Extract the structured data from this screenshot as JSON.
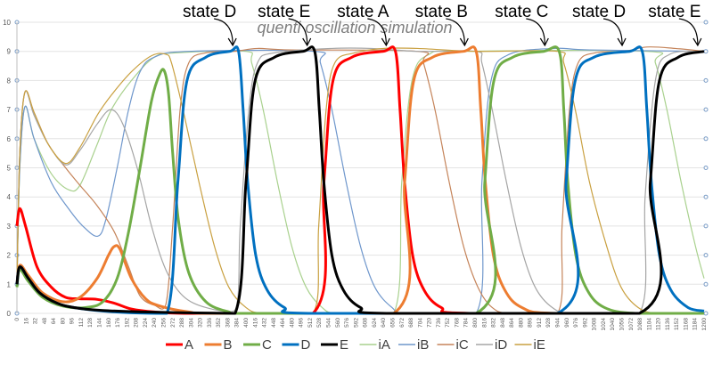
{
  "chart_data": {
    "type": "line",
    "title": "quenti oscillation simulation",
    "xlabel": "",
    "ylabel": "",
    "xlim": [
      0,
      1200
    ],
    "ylim": [
      0,
      10
    ],
    "y_ticks": [
      0,
      1,
      2,
      3,
      4,
      5,
      6,
      7,
      8,
      9,
      10
    ],
    "x_tick_step": 16,
    "grid": true,
    "legend_position": "bottom",
    "annotations": [
      {
        "text": "state D",
        "x": 380
      },
      {
        "text": "state E",
        "x": 510
      },
      {
        "text": "state A",
        "x": 648
      },
      {
        "text": "state B",
        "x": 785
      },
      {
        "text": "state C",
        "x": 925
      },
      {
        "text": "state D",
        "x": 1060
      },
      {
        "text": "state E",
        "x": 1192
      }
    ],
    "series": [
      {
        "name": "A",
        "color": "#ff0000",
        "width": 3,
        "points": [
          [
            0,
            3.0
          ],
          [
            5,
            3.6
          ],
          [
            15,
            3.0
          ],
          [
            35,
            1.6
          ],
          [
            60,
            0.9
          ],
          [
            85,
            0.55
          ],
          [
            110,
            0.5
          ],
          [
            140,
            0.48
          ],
          [
            170,
            0.35
          ],
          [
            200,
            0.15
          ],
          [
            240,
            0.05
          ],
          [
            300,
            0
          ],
          [
            517,
            0
          ],
          [
            536,
            4.5
          ],
          [
            552,
            8
          ],
          [
            585,
            8.8
          ],
          [
            640,
            9
          ],
          [
            661,
            9
          ],
          [
            669,
            7
          ],
          [
            677,
            4.5
          ],
          [
            691,
            2
          ],
          [
            711,
            0.8
          ],
          [
            741,
            0.2
          ],
          [
            790,
            0
          ],
          [
            1200,
            0
          ]
        ]
      },
      {
        "name": "B",
        "color": "#ed7d31",
        "width": 3,
        "points": [
          [
            0,
            1.0
          ],
          [
            5,
            1.65
          ],
          [
            20,
            1.3
          ],
          [
            45,
            0.7
          ],
          [
            80,
            0.4
          ],
          [
            110,
            0.55
          ],
          [
            140,
            1.2
          ],
          [
            160,
            2.0
          ],
          [
            170,
            2.3
          ],
          [
            180,
            2.2
          ],
          [
            200,
            1.2
          ],
          [
            225,
            0.5
          ],
          [
            250,
            0.25
          ],
          [
            300,
            0.05
          ],
          [
            350,
            0
          ],
          [
            658,
            0
          ],
          [
            677,
            4.5
          ],
          [
            693,
            8
          ],
          [
            726,
            8.8
          ],
          [
            780,
            9
          ],
          [
            802,
            9
          ],
          [
            810,
            7
          ],
          [
            818,
            4.5
          ],
          [
            832,
            2
          ],
          [
            852,
            0.8
          ],
          [
            882,
            0.2
          ],
          [
            940,
            0
          ],
          [
            1200,
            0
          ]
        ]
      },
      {
        "name": "C",
        "color": "#70ad47",
        "width": 3,
        "points": [
          [
            0,
            0.9
          ],
          [
            5,
            1.5
          ],
          [
            20,
            1.1
          ],
          [
            45,
            0.55
          ],
          [
            80,
            0.25
          ],
          [
            120,
            0.2
          ],
          [
            150,
            0.4
          ],
          [
            175,
            1.2
          ],
          [
            195,
            2.8
          ],
          [
            215,
            5
          ],
          [
            235,
            7.3
          ],
          [
            250,
            8.25
          ],
          [
            258,
            8.3
          ],
          [
            265,
            7.5
          ],
          [
            272,
            5.5
          ],
          [
            282,
            3.2
          ],
          [
            300,
            1.4
          ],
          [
            330,
            0.4
          ],
          [
            370,
            0.05
          ],
          [
            400,
            0
          ],
          [
            802,
            0
          ],
          [
            817,
            4.5
          ],
          [
            833,
            8
          ],
          [
            866,
            8.8
          ],
          [
            920,
            9
          ],
          [
            947,
            9
          ],
          [
            955,
            7
          ],
          [
            962,
            4.5
          ],
          [
            976,
            2
          ],
          [
            996,
            0.8
          ],
          [
            1026,
            0.2
          ],
          [
            1080,
            0
          ],
          [
            1200,
            0
          ]
        ]
      },
      {
        "name": "D",
        "color": "#0070c0",
        "width": 3,
        "points": [
          [
            0,
            1.0
          ],
          [
            5,
            1.6
          ],
          [
            20,
            1.2
          ],
          [
            40,
            0.7
          ],
          [
            70,
            0.35
          ],
          [
            100,
            0.2
          ],
          [
            150,
            0.08
          ],
          [
            200,
            0.02
          ],
          [
            262,
            0
          ],
          [
            281,
            4.5
          ],
          [
            297,
            8
          ],
          [
            330,
            8.8
          ],
          [
            372,
            9
          ],
          [
            387,
            9
          ],
          [
            395,
            7
          ],
          [
            403,
            4.5
          ],
          [
            417,
            2
          ],
          [
            437,
            0.8
          ],
          [
            467,
            0.2
          ],
          [
            510,
            0
          ],
          [
            944,
            0
          ],
          [
            959,
            4.5
          ],
          [
            975,
            8
          ],
          [
            1008,
            8.8
          ],
          [
            1070,
            9
          ],
          [
            1092,
            9
          ],
          [
            1100,
            7
          ],
          [
            1108,
            4.5
          ],
          [
            1122,
            2
          ],
          [
            1142,
            0.8
          ],
          [
            1172,
            0.2
          ],
          [
            1200,
            0.08
          ]
        ]
      },
      {
        "name": "E",
        "color": "#000000",
        "width": 3,
        "points": [
          [
            0,
            1.0
          ],
          [
            5,
            1.6
          ],
          [
            20,
            1.2
          ],
          [
            40,
            0.7
          ],
          [
            70,
            0.35
          ],
          [
            100,
            0.2
          ],
          [
            150,
            0.1
          ],
          [
            220,
            0.05
          ],
          [
            300,
            0.02
          ],
          [
            381,
            0
          ],
          [
            400,
            4.5
          ],
          [
            416,
            8
          ],
          [
            450,
            8.8
          ],
          [
            500,
            9
          ],
          [
            520,
            9
          ],
          [
            528,
            7
          ],
          [
            536,
            4.5
          ],
          [
            550,
            2
          ],
          [
            570,
            0.8
          ],
          [
            600,
            0.2
          ],
          [
            645,
            0
          ],
          [
            1087,
            0
          ],
          [
            1106,
            4.5
          ],
          [
            1122,
            8
          ],
          [
            1155,
            8.8
          ],
          [
            1200,
            9
          ]
        ]
      },
      {
        "name": "iA",
        "color": "#a9d18e",
        "width": 1.2,
        "points": [
          [
            0,
            1
          ],
          [
            5,
            5
          ],
          [
            14,
            7.1
          ],
          [
            30,
            6.0
          ],
          [
            60,
            4.8
          ],
          [
            90,
            4.25
          ],
          [
            110,
            4.4
          ],
          [
            140,
            5.8
          ],
          [
            165,
            7
          ],
          [
            200,
            8
          ],
          [
            240,
            8.8
          ],
          [
            280,
            8.95
          ],
          [
            400,
            9
          ],
          [
            410,
            8.6
          ],
          [
            430,
            7
          ],
          [
            455,
            4.5
          ],
          [
            480,
            2.3
          ],
          [
            505,
            0.9
          ],
          [
            533,
            0.2
          ],
          [
            560,
            0
          ],
          [
            658,
            0
          ],
          [
            672,
            4.5
          ],
          [
            690,
            8
          ],
          [
            720,
            8.9
          ],
          [
            780,
            9
          ],
          [
            1100,
            9
          ],
          [
            1115,
            8.6
          ],
          [
            1135,
            7
          ],
          [
            1160,
            4.5
          ],
          [
            1185,
            2.3
          ],
          [
            1200,
            1.2
          ]
        ]
      },
      {
        "name": "iB",
        "color": "#6f97cc",
        "width": 1.2,
        "points": [
          [
            0,
            1
          ],
          [
            5,
            5
          ],
          [
            14,
            7.1
          ],
          [
            30,
            6
          ],
          [
            60,
            4.5
          ],
          [
            90,
            3.6
          ],
          [
            115,
            3.0
          ],
          [
            141,
            2.65
          ],
          [
            155,
            3.2
          ],
          [
            175,
            5
          ],
          [
            195,
            7
          ],
          [
            215,
            8.3
          ],
          [
            240,
            8.8
          ],
          [
            300,
            9
          ],
          [
            520,
            9
          ],
          [
            530,
            8.6
          ],
          [
            550,
            7
          ],
          [
            575,
            4.5
          ],
          [
            600,
            2.3
          ],
          [
            625,
            0.9
          ],
          [
            655,
            0.2
          ],
          [
            680,
            0
          ],
          [
            802,
            0
          ],
          [
            812,
            4.5
          ],
          [
            828,
            8
          ],
          [
            860,
            8.9
          ],
          [
            940,
            9.1
          ],
          [
            1000,
            9.05
          ],
          [
            1200,
            9
          ]
        ]
      },
      {
        "name": "iC",
        "color": "#c5845a",
        "width": 1.2,
        "points": [
          [
            0,
            1
          ],
          [
            5,
            5.5
          ],
          [
            14,
            7.6
          ],
          [
            30,
            6.9
          ],
          [
            55,
            5.8
          ],
          [
            85,
            5.0
          ],
          [
            110,
            4.4
          ],
          [
            140,
            3.7
          ],
          [
            170,
            2.8
          ],
          [
            195,
            1.6
          ],
          [
            215,
            0.6
          ],
          [
            240,
            0.28
          ],
          [
            260,
            0.3
          ],
          [
            272,
            3
          ],
          [
            285,
            7
          ],
          [
            300,
            8.6
          ],
          [
            330,
            8.95
          ],
          [
            380,
            9
          ],
          [
            420,
            9.1
          ],
          [
            480,
            9.05
          ],
          [
            700,
            9
          ],
          [
            710,
            8.6
          ],
          [
            730,
            7
          ],
          [
            755,
            4.5
          ],
          [
            780,
            2.3
          ],
          [
            805,
            0.9
          ],
          [
            830,
            0.2
          ],
          [
            860,
            0
          ],
          [
            944,
            0
          ],
          [
            952,
            3
          ],
          [
            965,
            7
          ],
          [
            980,
            8.6
          ],
          [
            1010,
            8.95
          ],
          [
            1060,
            9
          ],
          [
            1100,
            9.15
          ],
          [
            1150,
            9.1
          ],
          [
            1200,
            9
          ]
        ]
      },
      {
        "name": "iD",
        "color": "#a5a5a5",
        "width": 1.2,
        "points": [
          [
            0,
            1
          ],
          [
            5,
            5.5
          ],
          [
            14,
            7.6
          ],
          [
            30,
            6.8
          ],
          [
            55,
            5.8
          ],
          [
            85,
            5.1
          ],
          [
            110,
            5.6
          ],
          [
            140,
            6.5
          ],
          [
            164,
            7.0
          ],
          [
            185,
            6.5
          ],
          [
            210,
            5
          ],
          [
            235,
            3
          ],
          [
            260,
            1.5
          ],
          [
            290,
            0.6
          ],
          [
            330,
            0.2
          ],
          [
            381,
            0.1
          ],
          [
            390,
            3
          ],
          [
            405,
            7
          ],
          [
            420,
            8.6
          ],
          [
            450,
            8.95
          ],
          [
            550,
            9.1
          ],
          [
            620,
            9.1
          ],
          [
            700,
            9
          ],
          [
            802,
            9
          ],
          [
            812,
            8.6
          ],
          [
            830,
            7
          ],
          [
            855,
            4.5
          ],
          [
            880,
            2.3
          ],
          [
            905,
            0.9
          ],
          [
            935,
            0.2
          ],
          [
            970,
            0
          ],
          [
            1087,
            0
          ],
          [
            1097,
            4
          ],
          [
            1115,
            8
          ],
          [
            1140,
            8.9
          ],
          [
            1200,
            9
          ]
        ]
      },
      {
        "name": "iE",
        "color": "#c9a040",
        "width": 1.2,
        "points": [
          [
            0,
            1
          ],
          [
            5,
            5.5
          ],
          [
            14,
            7.6
          ],
          [
            30,
            6.9
          ],
          [
            55,
            5.8
          ],
          [
            85,
            5.15
          ],
          [
            110,
            5.7
          ],
          [
            140,
            6.8
          ],
          [
            165,
            7.5
          ],
          [
            200,
            8.3
          ],
          [
            235,
            8.85
          ],
          [
            260,
            8.9
          ],
          [
            270,
            8.6
          ],
          [
            290,
            7
          ],
          [
            318,
            4.5
          ],
          [
            345,
            2.3
          ],
          [
            370,
            0.9
          ],
          [
            400,
            0.2
          ],
          [
            430,
            0
          ],
          [
            517,
            0
          ],
          [
            527,
            3
          ],
          [
            540,
            7
          ],
          [
            555,
            8.6
          ],
          [
            590,
            8.95
          ],
          [
            640,
            9.1
          ],
          [
            700,
            9.1
          ],
          [
            800,
            9
          ],
          [
            944,
            9
          ],
          [
            955,
            8.6
          ],
          [
            975,
            7
          ],
          [
            1000,
            4.5
          ],
          [
            1030,
            2.3
          ],
          [
            1055,
            0.9
          ],
          [
            1085,
            0.2
          ],
          [
            1120,
            0
          ],
          [
            1200,
            0
          ]
        ]
      }
    ]
  }
}
